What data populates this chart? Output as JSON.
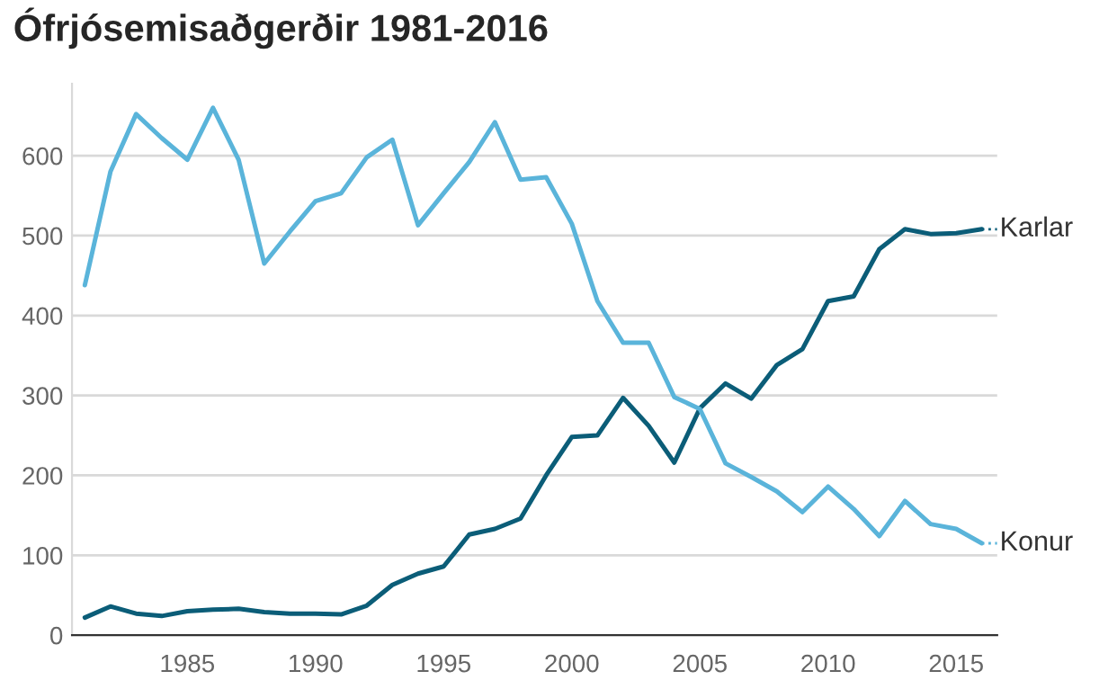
{
  "chart_data": {
    "type": "line",
    "title": "Ófrjósemisaðgerðir 1981-2016",
    "x": [
      1981,
      1982,
      1983,
      1984,
      1985,
      1986,
      1987,
      1988,
      1989,
      1990,
      1991,
      1992,
      1993,
      1994,
      1995,
      1996,
      1997,
      1998,
      1999,
      2000,
      2001,
      2002,
      2003,
      2004,
      2005,
      2006,
      2007,
      2008,
      2009,
      2010,
      2011,
      2012,
      2013,
      2014,
      2015,
      2016
    ],
    "series": [
      {
        "name": "Karlar",
        "color": "#0b5d78",
        "values": [
          22,
          36,
          27,
          24,
          30,
          32,
          33,
          29,
          27,
          27,
          26,
          37,
          63,
          77,
          86,
          126,
          133,
          146,
          200,
          248,
          250,
          297,
          262,
          216,
          284,
          315,
          296,
          338,
          358,
          418,
          424,
          483,
          508,
          502,
          503,
          508
        ]
      },
      {
        "name": "Konur",
        "color": "#5ab4da",
        "values": [
          438,
          580,
          652,
          622,
          595,
          660,
          595,
          465,
          505,
          543,
          553,
          598,
          620,
          513,
          553,
          592,
          642,
          570,
          573,
          515,
          418,
          366,
          366,
          298,
          283,
          215,
          198,
          180,
          154,
          186,
          158,
          124,
          168,
          139,
          133,
          115
        ]
      }
    ],
    "xlim": [
      1980.5,
      2016.6
    ],
    "xticks": [
      1985,
      1990,
      1995,
      2000,
      2005,
      2010,
      2015
    ],
    "ylim": [
      0,
      690
    ],
    "yticks": [
      0,
      100,
      200,
      300,
      400,
      500,
      600
    ],
    "grid": "y",
    "legend": "right",
    "marker": "none",
    "line_style": "solid"
  }
}
